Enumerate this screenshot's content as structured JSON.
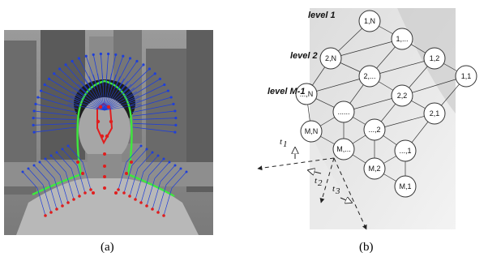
{
  "panel_a": {
    "caption": "(a)"
  },
  "panel_b": {
    "caption": "(b)",
    "levels": [
      "level 1",
      "level 2",
      "level M-1"
    ],
    "nodes": [
      "1,N",
      "1,...",
      "1,2",
      "1,1",
      "2,N",
      "2,...",
      "2,2",
      "2,1",
      "...,N",
      "......",
      "...,2",
      "...,1",
      "M,N",
      "M,...",
      "M,2",
      "M,1"
    ],
    "axis_labels": [
      "t",
      "t",
      "t"
    ],
    "axis_subscripts": [
      "1",
      "2",
      "3"
    ]
  },
  "colors": {
    "contour_blue": "#1f3fd9",
    "contour_green": "#3ee83e",
    "point_red": "#e01e1e",
    "node_fill": "#ffffff"
  }
}
